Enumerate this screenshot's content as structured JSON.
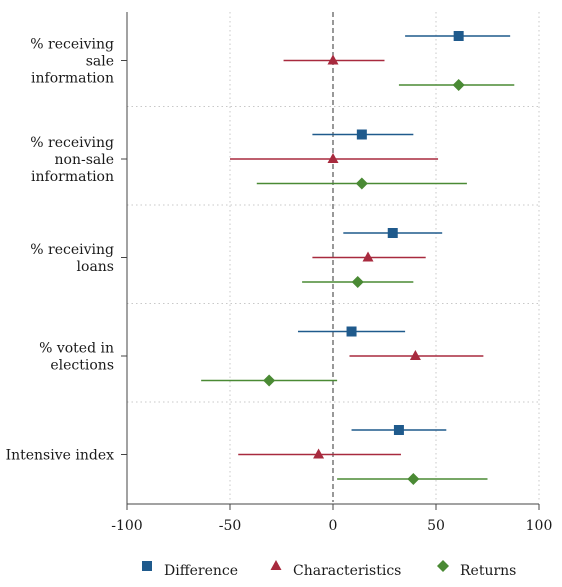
{
  "chart_data": {
    "type": "scatter",
    "subtype": "coefficient-plot-horizontal-error-bars",
    "xlim": [
      -100,
      100
    ],
    "xticks": [
      -100,
      -50,
      0,
      50,
      100
    ],
    "xtick_labels": [
      "-100",
      "-50",
      "0",
      "50",
      "100"
    ],
    "reference_line_x": 0,
    "grid": true,
    "legend_position": "bottom",
    "categories": [
      {
        "label_lines": [
          "% receiving",
          "sale",
          "information"
        ]
      },
      {
        "label_lines": [
          "% receiving",
          "non-sale",
          "information"
        ]
      },
      {
        "label_lines": [
          "% receiving",
          "loans"
        ]
      },
      {
        "label_lines": [
          "% voted in",
          "elections"
        ]
      },
      {
        "label_lines": [
          "Intensive index"
        ]
      }
    ],
    "series": [
      {
        "name": "Difference",
        "marker": "square",
        "color": "#1f5a8c",
        "points": [
          {
            "est": 61,
            "lo": 35,
            "hi": 86
          },
          {
            "est": 14,
            "lo": -10,
            "hi": 39
          },
          {
            "est": 29,
            "lo": 5,
            "hi": 53
          },
          {
            "est": 9,
            "lo": -17,
            "hi": 35
          },
          {
            "est": 32,
            "lo": 9,
            "hi": 55
          }
        ]
      },
      {
        "name": "Characteristics",
        "marker": "triangle",
        "color": "#a82a3e",
        "points": [
          {
            "est": 0,
            "lo": -24,
            "hi": 25
          },
          {
            "est": 0,
            "lo": -50,
            "hi": 51
          },
          {
            "est": 17,
            "lo": -10,
            "hi": 45
          },
          {
            "est": 40,
            "lo": 8,
            "hi": 73
          },
          {
            "est": -7,
            "lo": -46,
            "hi": 33
          }
        ]
      },
      {
        "name": "Returns",
        "marker": "diamond",
        "color": "#4a8a34",
        "points": [
          {
            "est": 61,
            "lo": 32,
            "hi": 88
          },
          {
            "est": 14,
            "lo": -37,
            "hi": 65
          },
          {
            "est": 12,
            "lo": -15,
            "hi": 39
          },
          {
            "est": -31,
            "lo": -64,
            "hi": 2
          },
          {
            "est": 39,
            "lo": 2,
            "hi": 75
          }
        ]
      }
    ]
  }
}
